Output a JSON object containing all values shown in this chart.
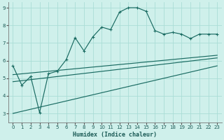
{
  "xlabel": "Humidex (Indice chaleur)",
  "bg_color": "#cff0eb",
  "line_color": "#1a6b62",
  "grid_color": "#aaddd6",
  "xlim": [
    -0.5,
    23.5
  ],
  "ylim": [
    2.5,
    9.3
  ],
  "xticks": [
    0,
    1,
    2,
    3,
    4,
    5,
    6,
    7,
    8,
    9,
    10,
    11,
    12,
    13,
    14,
    15,
    16,
    17,
    18,
    19,
    20,
    21,
    22,
    23
  ],
  "yticks": [
    3,
    4,
    5,
    6,
    7,
    8,
    9
  ],
  "line1_x": [
    0,
    1,
    2,
    3,
    4,
    5,
    6,
    7,
    8,
    9,
    10,
    11,
    12,
    13,
    14,
    15,
    16,
    17,
    18,
    19,
    20,
    21,
    22,
    23
  ],
  "line1_y": [
    5.7,
    4.6,
    5.1,
    3.05,
    5.25,
    5.4,
    6.05,
    7.3,
    6.55,
    7.35,
    7.9,
    7.75,
    8.75,
    9.0,
    9.0,
    8.8,
    7.7,
    7.5,
    7.6,
    7.5,
    7.25,
    7.5,
    7.5,
    7.5
  ],
  "line2_x": [
    0,
    23
  ],
  "line2_y": [
    5.2,
    6.3
  ],
  "line3_x": [
    0,
    23
  ],
  "line3_y": [
    4.8,
    6.15
  ],
  "line4_x": [
    0,
    23
  ],
  "line4_y": [
    3.0,
    5.7
  ]
}
